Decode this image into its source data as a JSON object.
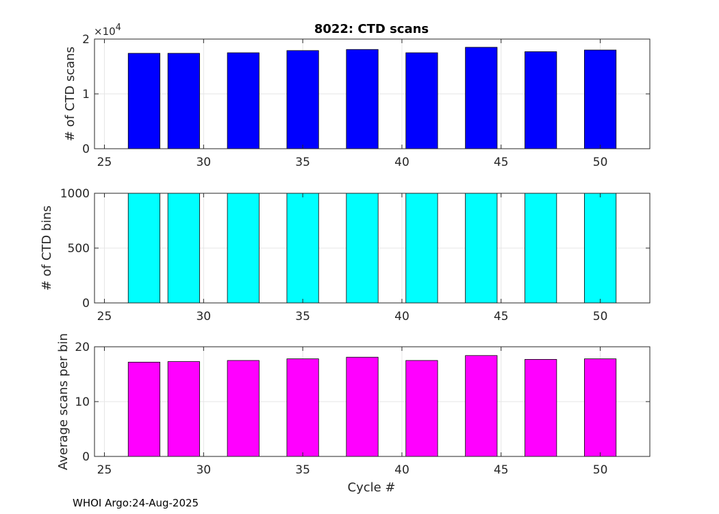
{
  "figure": {
    "title": "8022: CTD scans",
    "footer": "WHOI Argo:24-Aug-2025",
    "xlabel": "Cycle #"
  },
  "chart_data": [
    {
      "type": "bar",
      "name": "scans",
      "title": "8022: CTD scans",
      "xlabel": "",
      "ylabel": "# of CTD scans",
      "y_exponent_label": "×10",
      "y_exponent_power": "4",
      "y_scale": 10000,
      "xlim": [
        24.5,
        52.5
      ],
      "ylim": [
        0,
        20000
      ],
      "xticks": [
        25,
        30,
        35,
        40,
        45,
        50
      ],
      "yticks": [
        0,
        10000,
        20000
      ],
      "ytick_labels": [
        "0",
        "1",
        "2"
      ],
      "grid": true,
      "color": "#0000ff",
      "x": [
        27,
        29,
        32,
        35,
        38,
        41,
        44,
        47,
        50
      ],
      "values": [
        17400,
        17400,
        17500,
        17900,
        18100,
        17500,
        18500,
        17700,
        18000
      ]
    },
    {
      "type": "bar",
      "name": "bins",
      "title": "",
      "xlabel": "",
      "ylabel": "# of CTD bins",
      "xlim": [
        24.5,
        52.5
      ],
      "ylim": [
        0,
        1000
      ],
      "xticks": [
        25,
        30,
        35,
        40,
        45,
        50
      ],
      "yticks": [
        0,
        500,
        1000
      ],
      "ytick_labels": [
        "0",
        "500",
        "1000"
      ],
      "grid": true,
      "color": "#00ffff",
      "x": [
        27,
        29,
        32,
        35,
        38,
        41,
        44,
        47,
        50
      ],
      "values": [
        1000,
        1000,
        1000,
        1000,
        1000,
        1000,
        1000,
        1000,
        1000
      ]
    },
    {
      "type": "bar",
      "name": "avg",
      "title": "",
      "xlabel": "Cycle #",
      "ylabel": "Average scans per bin",
      "xlim": [
        24.5,
        52.5
      ],
      "ylim": [
        0,
        20
      ],
      "xticks": [
        25,
        30,
        35,
        40,
        45,
        50
      ],
      "yticks": [
        0,
        10,
        20
      ],
      "ytick_labels": [
        "0",
        "10",
        "20"
      ],
      "grid": true,
      "color": "#ff00ff",
      "x": [
        27,
        29,
        32,
        35,
        38,
        41,
        44,
        47,
        50
      ],
      "values": [
        17.2,
        17.3,
        17.5,
        17.8,
        18.1,
        17.5,
        18.4,
        17.7,
        17.8
      ]
    }
  ]
}
